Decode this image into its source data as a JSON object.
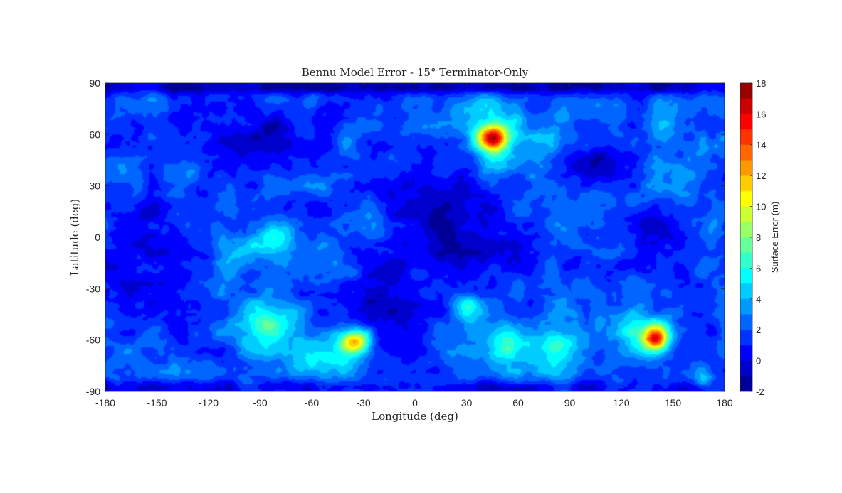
{
  "chart_data": {
    "type": "heatmap",
    "subtype": "filled-contour",
    "title": "Bennu Model Error - 15° Terminator-Only",
    "xlabel": "Longitude (deg)",
    "ylabel": "Latitude (deg)",
    "xlim": [
      -180,
      180
    ],
    "ylim": [
      -90,
      90
    ],
    "xticks": [
      -180,
      -150,
      -120,
      -90,
      -60,
      -30,
      0,
      30,
      60,
      90,
      120,
      150,
      180
    ],
    "yticks": [
      90,
      60,
      30,
      0,
      -30,
      -60,
      -90
    ],
    "colorbar": {
      "label": "Surface Error (m)",
      "colormap": "jet",
      "range": [
        -2,
        18
      ],
      "ticks": [
        18,
        16,
        14,
        12,
        10,
        8,
        6,
        4,
        2,
        0,
        -2
      ],
      "levels": 20
    },
    "background_value": 2,
    "features": [
      {
        "lon": 45,
        "lat": 58,
        "sx": 6,
        "sy": 5,
        "value": 14
      },
      {
        "lon": 45,
        "lat": 60,
        "sx": 13,
        "sy": 14,
        "value": 5
      },
      {
        "lon": 48,
        "lat": 42,
        "sx": 8,
        "sy": 8,
        "value": 3
      },
      {
        "lon": 78,
        "lat": 56,
        "sx": 10,
        "sy": 8,
        "value": 4
      },
      {
        "lon": 140,
        "lat": -59,
        "sx": 5,
        "sy": 5,
        "value": 13
      },
      {
        "lon": 132,
        "lat": -55,
        "sx": 14,
        "sy": 12,
        "value": 5
      },
      {
        "lon": 115,
        "lat": -48,
        "sx": 8,
        "sy": 6,
        "value": 3
      },
      {
        "lon": -35,
        "lat": -61,
        "sx": 6,
        "sy": 5,
        "value": 12
      },
      {
        "lon": -45,
        "lat": -66,
        "sx": 14,
        "sy": 12,
        "value": 5
      },
      {
        "lon": -55,
        "lat": -73,
        "sx": 10,
        "sy": 6,
        "value": 4
      },
      {
        "lon": -85,
        "lat": -48,
        "sx": 8,
        "sy": 8,
        "value": 6
      },
      {
        "lon": -88,
        "lat": -62,
        "sx": 12,
        "sy": 16,
        "value": 4
      },
      {
        "lon": -92,
        "lat": -5,
        "sx": 14,
        "sy": 8,
        "value": 3.5
      },
      {
        "lon": -80,
        "lat": -2,
        "sx": 6,
        "sy": 6,
        "value": 5
      },
      {
        "lon": 30,
        "lat": -40,
        "sx": 6,
        "sy": 6,
        "value": 6
      },
      {
        "lon": 65,
        "lat": -65,
        "sx": 25,
        "sy": 12,
        "value": 4
      },
      {
        "lon": 55,
        "lat": -63,
        "sx": 6,
        "sy": 6,
        "value": 5
      },
      {
        "lon": 82,
        "lat": -62,
        "sx": 8,
        "sy": 6,
        "value": 4.5
      },
      {
        "lon": 80,
        "lat": -78,
        "sx": 12,
        "sy": 5,
        "value": 4
      },
      {
        "lon": 168,
        "lat": -82,
        "sx": 5,
        "sy": 5,
        "value": 5
      },
      {
        "lon": -150,
        "lat": -62,
        "sx": 25,
        "sy": 12,
        "value": 1.5
      },
      {
        "lon": 80,
        "lat": -20,
        "sx": 4,
        "sy": 6,
        "value": 3.5
      },
      {
        "lon": -10,
        "lat": -25,
        "sx": 12,
        "sy": 20,
        "value": 1
      },
      {
        "lon": -25,
        "lat": 5,
        "sx": 5,
        "sy": 12,
        "value": 3
      },
      {
        "lon": -165,
        "lat": 30,
        "sx": 5,
        "sy": 10,
        "value": 3
      },
      {
        "lon": -130,
        "lat": 38,
        "sx": 5,
        "sy": 5,
        "value": 3.5
      },
      {
        "lon": 158,
        "lat": 30,
        "sx": 10,
        "sy": 10,
        "value": 3
      },
      {
        "lon": 148,
        "lat": 65,
        "sx": 8,
        "sy": 6,
        "value": 3.5
      },
      {
        "lon": -60,
        "lat": 82,
        "sx": 4,
        "sy": 4,
        "value": 4
      },
      {
        "lon": -20,
        "lat": -50,
        "sx": 18,
        "sy": 15,
        "value": -0.5
      },
      {
        "lon": 20,
        "lat": 5,
        "sx": 25,
        "sy": 25,
        "value": -1
      },
      {
        "lon": -95,
        "lat": 60,
        "sx": 25,
        "sy": 12,
        "value": -0.5
      },
      {
        "lon": 100,
        "lat": 45,
        "sx": 15,
        "sy": 10,
        "value": -0.5
      },
      {
        "lon": 140,
        "lat": 5,
        "sx": 15,
        "sy": 10,
        "value": -0.5
      },
      {
        "lon": -160,
        "lat": 0,
        "sx": 15,
        "sy": 20,
        "value": -0.5
      },
      {
        "lon": 0,
        "lat": 88,
        "sx": 180,
        "sy": 3,
        "value": -1.5
      },
      {
        "lon": 0,
        "lat": -88,
        "sx": 180,
        "sy": 3,
        "value": 0
      }
    ],
    "grid": false
  }
}
